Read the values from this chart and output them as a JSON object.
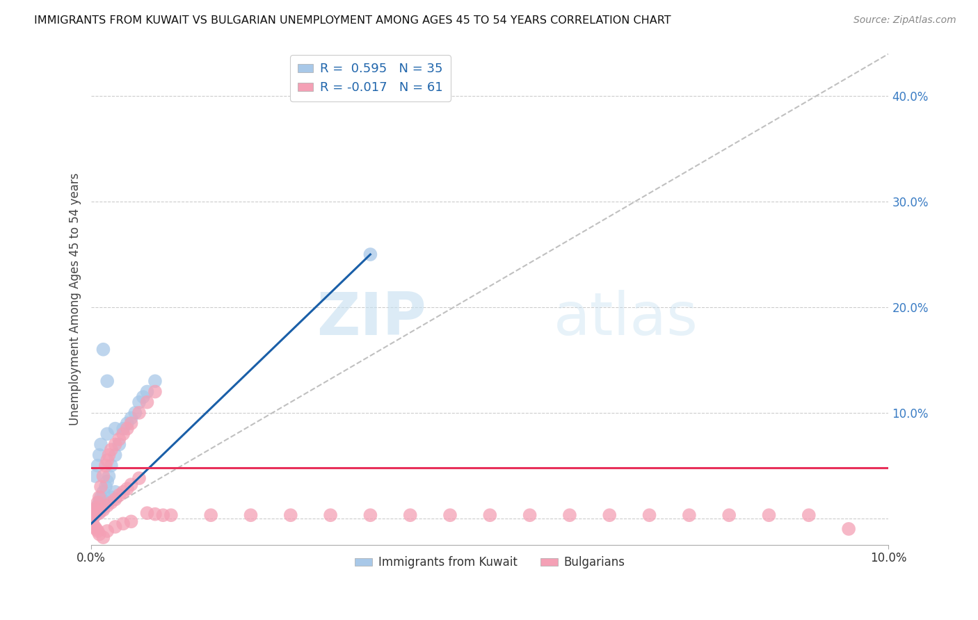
{
  "title": "IMMIGRANTS FROM KUWAIT VS BULGARIAN UNEMPLOYMENT AMONG AGES 45 TO 54 YEARS CORRELATION CHART",
  "source": "Source: ZipAtlas.com",
  "ylabel": "Unemployment Among Ages 45 to 54 years",
  "xlim": [
    0.0,
    0.1
  ],
  "ylim": [
    -0.025,
    0.44
  ],
  "ytick_vals": [
    0.0,
    0.1,
    0.2,
    0.3,
    0.4
  ],
  "ytick_labels": [
    "",
    "10.0%",
    "20.0%",
    "30.0%",
    "40.0%"
  ],
  "xtick_vals": [
    0.0,
    0.1
  ],
  "xtick_labels": [
    "0.0%",
    "10.0%"
  ],
  "legend_blue_label": "Immigrants from Kuwait",
  "legend_pink_label": "Bulgarians",
  "R_blue": 0.595,
  "N_blue": 35,
  "R_pink": -0.017,
  "N_pink": 61,
  "blue_color": "#a8c8e8",
  "pink_color": "#f4a0b5",
  "blue_line_color": "#1a5fa8",
  "pink_line_color": "#e8305a",
  "diagonal_color": "#c0c0c0",
  "watermark_zip": "ZIP",
  "watermark_atlas": "atlas",
  "blue_scatter_x": [
    0.0002,
    0.0005,
    0.0008,
    0.001,
    0.0012,
    0.0015,
    0.0018,
    0.002,
    0.0022,
    0.0025,
    0.003,
    0.0035,
    0.004,
    0.0045,
    0.005,
    0.0055,
    0.006,
    0.0065,
    0.007,
    0.008,
    0.0005,
    0.001,
    0.0015,
    0.002,
    0.0025,
    0.003,
    0.0005,
    0.0008,
    0.001,
    0.0012,
    0.0015,
    0.002,
    0.003,
    0.035,
    0.002
  ],
  "blue_scatter_y": [
    0.005,
    0.008,
    0.012,
    0.015,
    0.02,
    0.025,
    0.03,
    0.035,
    0.04,
    0.05,
    0.06,
    0.07,
    0.085,
    0.09,
    0.095,
    0.1,
    0.11,
    0.115,
    0.12,
    0.13,
    0.003,
    0.006,
    0.01,
    0.015,
    0.02,
    0.025,
    0.04,
    0.05,
    0.06,
    0.07,
    0.16,
    0.13,
    0.085,
    0.25,
    0.08
  ],
  "pink_scatter_x": [
    0.0002,
    0.0004,
    0.0006,
    0.0008,
    0.001,
    0.0012,
    0.0015,
    0.0018,
    0.002,
    0.0022,
    0.0025,
    0.003,
    0.0035,
    0.004,
    0.0045,
    0.005,
    0.006,
    0.007,
    0.008,
    0.0005,
    0.001,
    0.0015,
    0.002,
    0.0025,
    0.003,
    0.0035,
    0.004,
    0.0045,
    0.005,
    0.006,
    0.007,
    0.008,
    0.009,
    0.01,
    0.015,
    0.02,
    0.025,
    0.03,
    0.035,
    0.04,
    0.045,
    0.05,
    0.055,
    0.06,
    0.065,
    0.07,
    0.075,
    0.08,
    0.085,
    0.09,
    0.0002,
    0.0004,
    0.0006,
    0.0008,
    0.001,
    0.0015,
    0.002,
    0.003,
    0.004,
    0.005,
    0.095
  ],
  "pink_scatter_y": [
    0.005,
    0.008,
    0.01,
    0.015,
    0.02,
    0.03,
    0.04,
    0.05,
    0.055,
    0.06,
    0.065,
    0.07,
    0.075,
    0.08,
    0.085,
    0.09,
    0.1,
    0.11,
    0.12,
    0.003,
    0.005,
    0.008,
    0.012,
    0.015,
    0.018,
    0.022,
    0.025,
    0.028,
    0.032,
    0.038,
    0.005,
    0.004,
    0.003,
    0.003,
    0.003,
    0.003,
    0.003,
    0.003,
    0.003,
    0.003,
    0.003,
    0.003,
    0.003,
    0.003,
    0.003,
    0.003,
    0.003,
    0.003,
    0.003,
    0.003,
    -0.005,
    -0.008,
    -0.01,
    -0.012,
    -0.015,
    -0.018,
    -0.012,
    -0.008,
    -0.005,
    -0.003,
    -0.01
  ],
  "blue_line_x0": 0.0,
  "blue_line_y0": -0.005,
  "blue_line_x1": 0.035,
  "blue_line_y1": 0.25,
  "pink_line_x0": 0.0,
  "pink_line_y0": 0.048,
  "pink_line_x1": 0.1,
  "pink_line_y1": 0.048
}
